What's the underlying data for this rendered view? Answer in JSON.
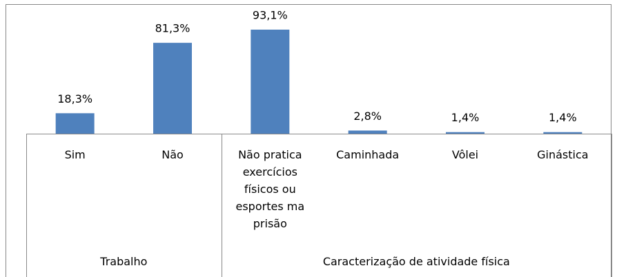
{
  "chart_data": {
    "type": "bar",
    "color": "#4f81bd",
    "groups": [
      {
        "name": "Trabalho",
        "categories": [
          "Sim",
          "Não"
        ],
        "values": [
          18.3,
          81.3
        ],
        "value_labels": [
          "18,3%",
          "81,3%"
        ]
      },
      {
        "name": "Caracterização de atividade física",
        "categories": [
          "Não pratica exercícios físicos ou esportes ma prisão",
          "Caminhada",
          "Vôlei",
          "Ginástica"
        ],
        "values": [
          93.1,
          2.8,
          1.4,
          1.4
        ],
        "value_labels": [
          "93,1%",
          "2,8%",
          "1,4%",
          "1,4%"
        ]
      }
    ]
  }
}
